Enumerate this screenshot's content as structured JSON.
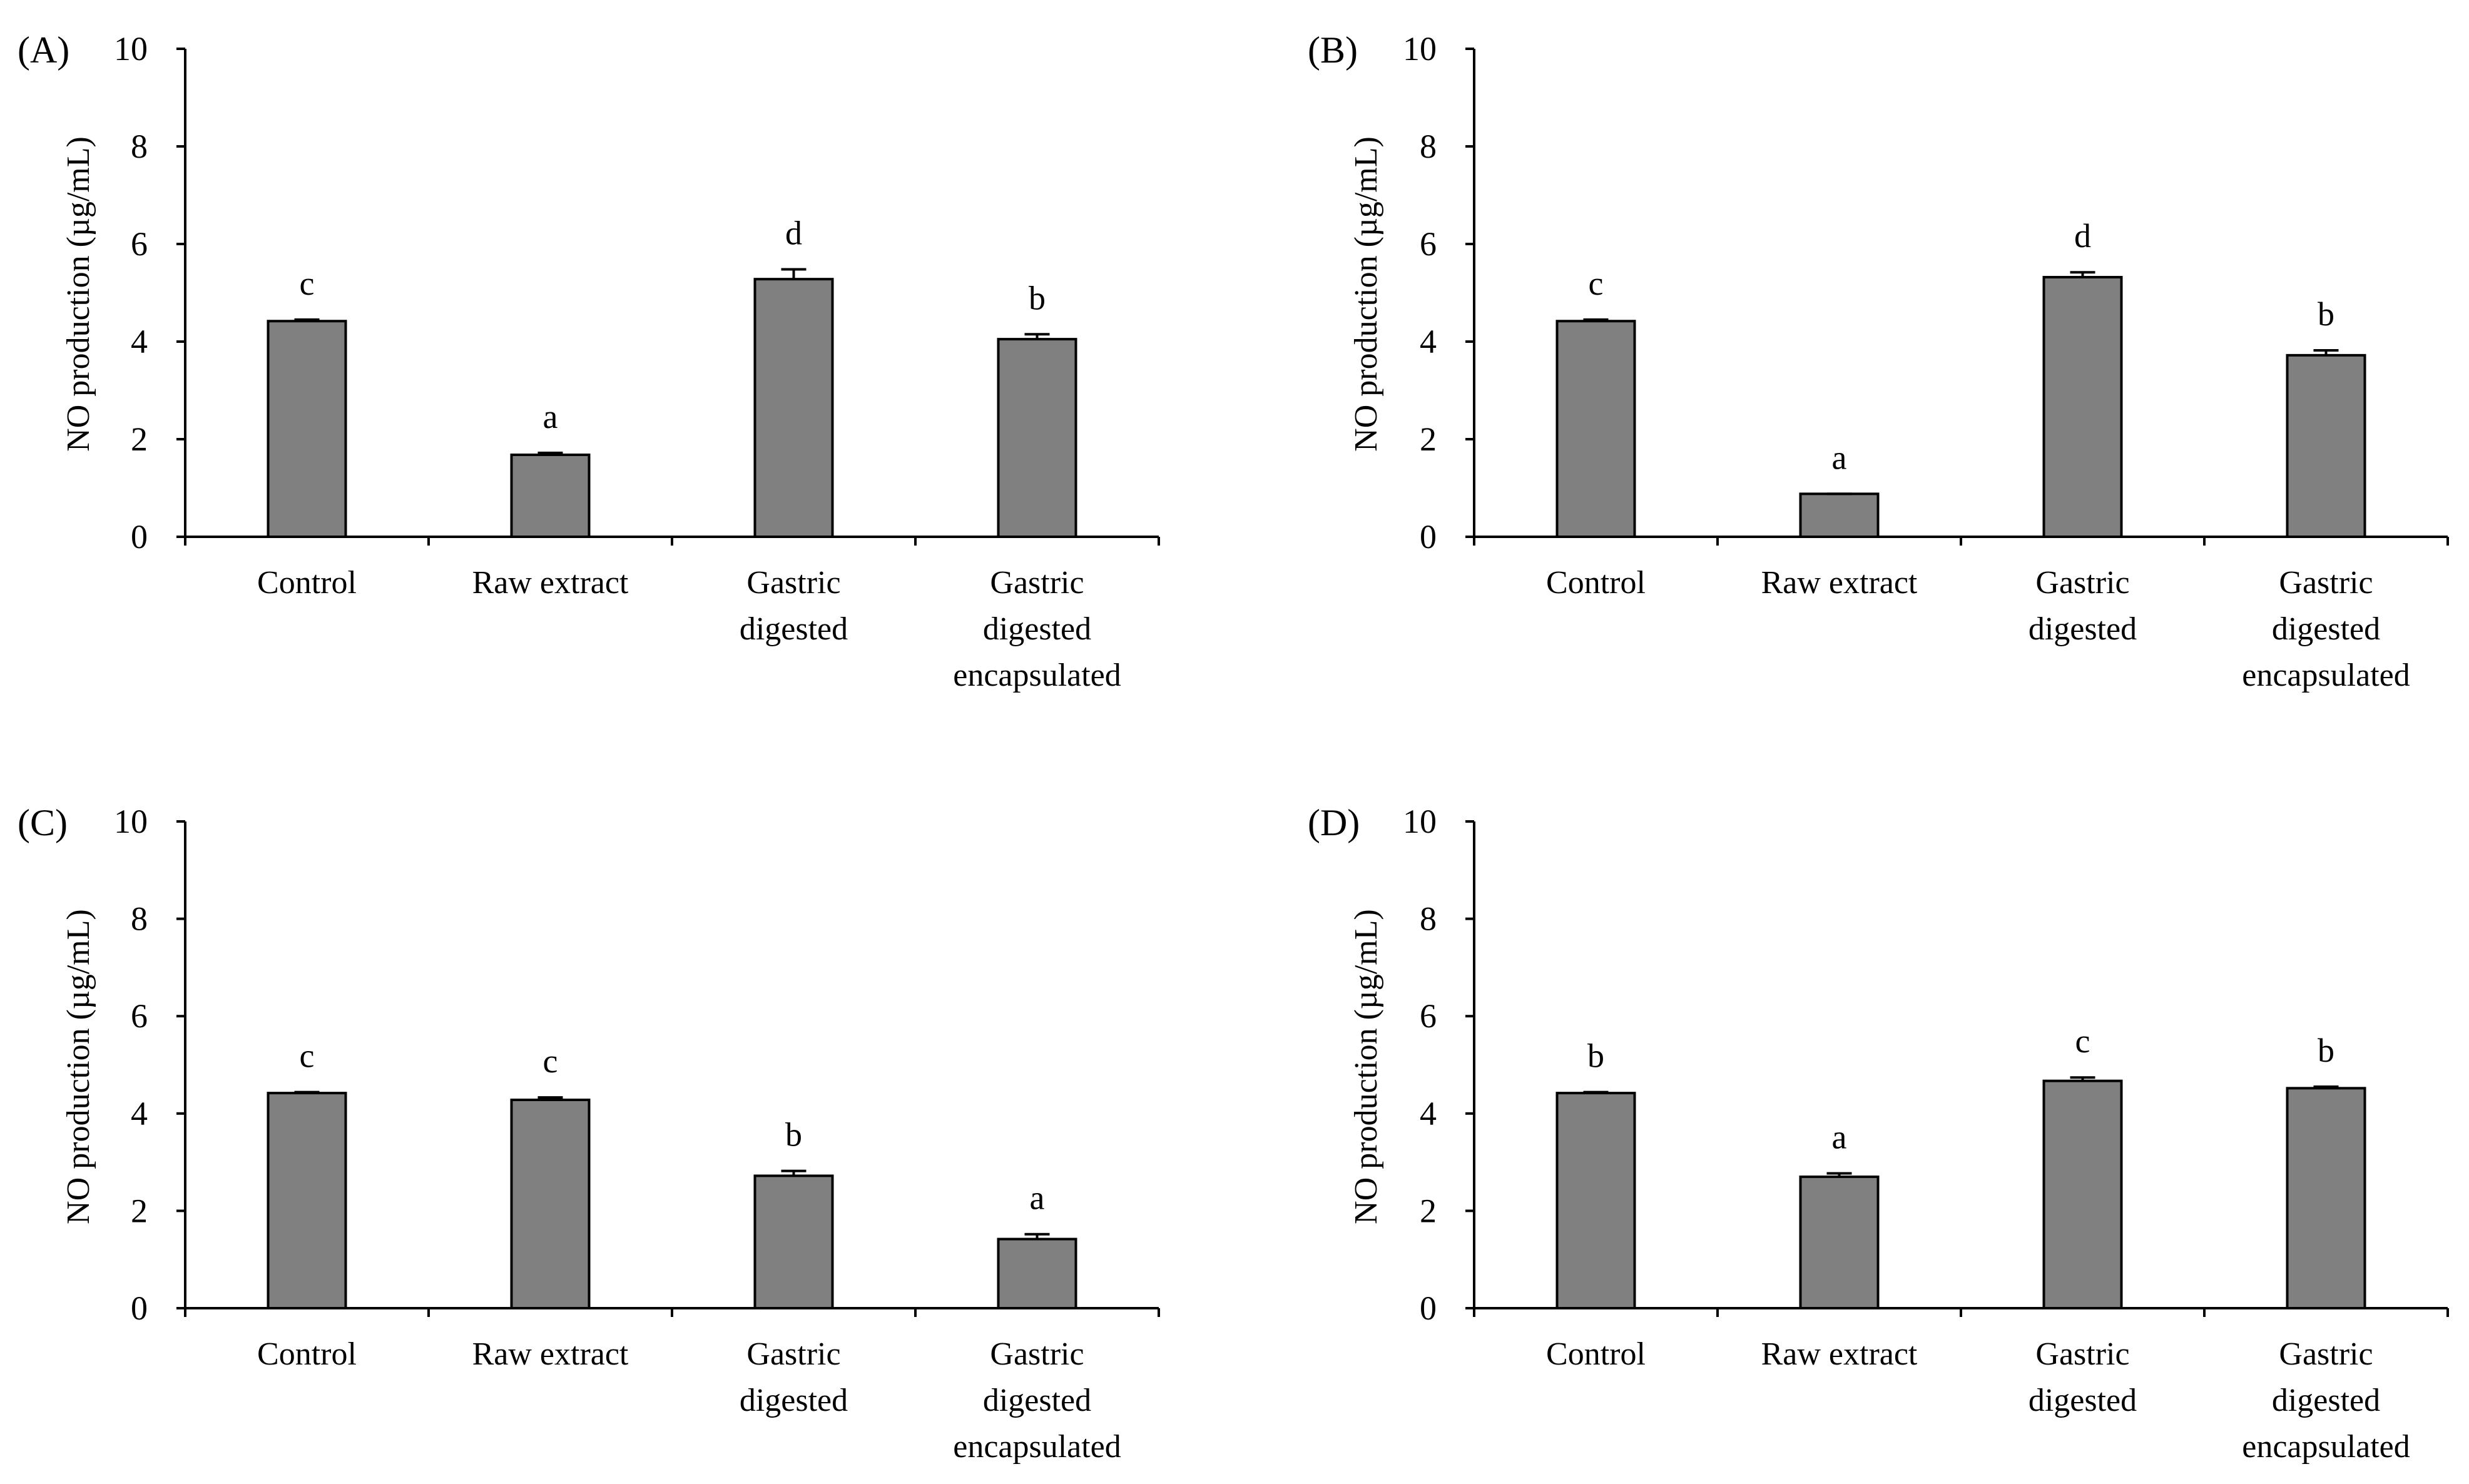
{
  "colors": {
    "bar_fill": "#808080",
    "bar_stroke": "#000000",
    "axis": "#000000"
  },
  "chart_data": [
    {
      "panel": "A",
      "panel_label": "(A)",
      "type": "bar",
      "ylabel": "NO production (µg/mL)",
      "ylim": [
        0,
        10
      ],
      "yticks": [
        0,
        2,
        4,
        6,
        8,
        10
      ],
      "categories": [
        "Control",
        "Raw extract",
        "Gastric digested",
        "Gastric digested encapsulated"
      ],
      "category_lines": [
        [
          "Control"
        ],
        [
          "Raw extract"
        ],
        [
          "Gastric",
          "digested"
        ],
        [
          "Gastric",
          "digested",
          "encapsulated"
        ]
      ],
      "values": [
        4.42,
        1.68,
        5.28,
        4.05
      ],
      "errors": [
        0.03,
        0.04,
        0.2,
        0.1
      ],
      "significance": [
        "c",
        "a",
        "d",
        "b"
      ]
    },
    {
      "panel": "B",
      "panel_label": "(B)",
      "type": "bar",
      "ylabel": "NO production (µg/mL)",
      "ylim": [
        0,
        10
      ],
      "yticks": [
        0,
        2,
        4,
        6,
        8,
        10
      ],
      "categories": [
        "Control",
        "Raw extract",
        "Gastric digested",
        "Gastric digested encapsulated"
      ],
      "category_lines": [
        [
          "Control"
        ],
        [
          "Raw extract"
        ],
        [
          "Gastric",
          "digested"
        ],
        [
          "Gastric",
          "digested",
          "encapsulated"
        ]
      ],
      "values": [
        4.42,
        0.88,
        5.32,
        3.72
      ],
      "errors": [
        0.03,
        0.0,
        0.1,
        0.1
      ],
      "significance": [
        "c",
        "a",
        "d",
        "b"
      ]
    },
    {
      "panel": "C",
      "panel_label": "(C)",
      "type": "bar",
      "ylabel": "NO production (µg/mL)",
      "ylim": [
        0,
        10
      ],
      "yticks": [
        0,
        2,
        4,
        6,
        8,
        10
      ],
      "categories": [
        "Control",
        "Raw extract",
        "Gastric digested",
        "Gastric digested encapsulated"
      ],
      "category_lines": [
        [
          "Control"
        ],
        [
          "Raw extract"
        ],
        [
          "Gastric",
          "digested"
        ],
        [
          "Gastric",
          "digested",
          "encapsulated"
        ]
      ],
      "values": [
        4.42,
        4.28,
        2.72,
        1.42
      ],
      "errors": [
        0.02,
        0.05,
        0.1,
        0.1
      ],
      "significance": [
        "c",
        "c",
        "b",
        "a"
      ]
    },
    {
      "panel": "D",
      "panel_label": "(D)",
      "type": "bar",
      "ylabel": "NO production (µg/mL)",
      "ylim": [
        0,
        10
      ],
      "yticks": [
        0,
        2,
        4,
        6,
        8,
        10
      ],
      "categories": [
        "Control",
        "Raw extract",
        "Gastric digested",
        "Gastric digested encapsulated"
      ],
      "category_lines": [
        [
          "Control"
        ],
        [
          "Raw extract"
        ],
        [
          "Gastric",
          "digested"
        ],
        [
          "Gastric",
          "digested",
          "encapsulated"
        ]
      ],
      "values": [
        4.42,
        2.7,
        4.67,
        4.52
      ],
      "errors": [
        0.02,
        0.07,
        0.07,
        0.03
      ],
      "significance": [
        "b",
        "a",
        "c",
        "b"
      ]
    }
  ]
}
